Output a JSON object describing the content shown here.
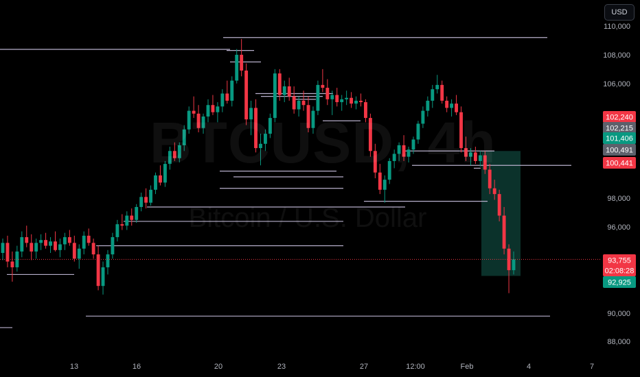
{
  "currency_button": "USD",
  "watermark": {
    "symbol": "BTCUSD, 4h",
    "name": "Bitcoin / U.S. Dollar"
  },
  "colors": {
    "background": "#000000",
    "up": "#089981",
    "down": "#f23645",
    "level_line": "#b8b0cc",
    "axis_text": "#b2b5be",
    "current_price_line": "#f23645",
    "zone_fill": "#0d3b33"
  },
  "chart_data": {
    "type": "candlestick",
    "symbol": "BTCUSD",
    "timeframe": "4h",
    "y_ticks": [
      "110,000",
      "108,000",
      "106,000",
      "98,000",
      "96,000",
      "90,000",
      "88,000"
    ],
    "x_ticks": [
      "13",
      "16",
      "20",
      "23",
      "27",
      "12:00",
      "Feb",
      "4",
      "7"
    ],
    "price_labels": [
      {
        "text": "102,240",
        "color": "#f23645"
      },
      {
        "text": "102,215",
        "color": "#5d606b"
      },
      {
        "text": "101,406",
        "color": "#089981"
      },
      {
        "text": "100,491",
        "color": "#5d606b"
      },
      {
        "text": "100,441",
        "color": "#f23645"
      },
      {
        "text": "93,755",
        "color": "#f23645"
      },
      {
        "text": "02:08:28",
        "color": "#f23645"
      },
      {
        "text": "92,925",
        "color": "#089981"
      }
    ],
    "current_price": 93755,
    "horizontal_levels": [
      109200,
      108300,
      107500,
      105300,
      105100,
      104900,
      103400,
      101300,
      100300,
      100100,
      99900,
      99500,
      98700,
      97800,
      97400,
      96400,
      94700,
      92700,
      89800,
      89000
    ],
    "zone": {
      "top": 101300,
      "bottom": 92600,
      "from": "Feb 1",
      "to": "Feb 3"
    },
    "candles": [
      [
        94200,
        95200,
        93700,
        94900
      ],
      [
        94900,
        95400,
        93200,
        93600
      ],
      [
        93600,
        94300,
        92200,
        93200
      ],
      [
        93200,
        94700,
        92900,
        94300
      ],
      [
        94300,
        95700,
        93900,
        95300
      ],
      [
        95300,
        96100,
        94600,
        94900
      ],
      [
        94900,
        95500,
        93700,
        94300
      ],
      [
        94300,
        95200,
        93800,
        94900
      ],
      [
        94900,
        95500,
        94400,
        95100
      ],
      [
        95100,
        95600,
        94500,
        94700
      ],
      [
        94700,
        95300,
        94200,
        95000
      ],
      [
        95000,
        95700,
        94300,
        94400
      ],
      [
        94400,
        95200,
        93900,
        94800
      ],
      [
        94800,
        95600,
        94400,
        95300
      ],
      [
        95300,
        95800,
        94700,
        94900
      ],
      [
        94900,
        95400,
        93600,
        93800
      ],
      [
        93800,
        94800,
        93100,
        94500
      ],
      [
        94500,
        95700,
        94100,
        95400
      ],
      [
        95400,
        95900,
        94700,
        94900
      ],
      [
        94900,
        95200,
        93800,
        94100
      ],
      [
        94100,
        94700,
        91600,
        91900
      ],
      [
        91900,
        93600,
        91300,
        93200
      ],
      [
        93200,
        94400,
        92700,
        94100
      ],
      [
        94100,
        95600,
        93800,
        95300
      ],
      [
        95300,
        96500,
        95000,
        96200
      ],
      [
        96200,
        96900,
        95800,
        96100
      ],
      [
        96100,
        97100,
        95800,
        96800
      ],
      [
        96800,
        97300,
        96100,
        96500
      ],
      [
        96500,
        97600,
        96300,
        97400
      ],
      [
        97400,
        98400,
        97100,
        98100
      ],
      [
        98100,
        98700,
        97300,
        97700
      ],
      [
        97700,
        98900,
        97500,
        98600
      ],
      [
        98600,
        99800,
        98300,
        99600
      ],
      [
        99600,
        100300,
        98900,
        99100
      ],
      [
        99100,
        100600,
        98800,
        100400
      ],
      [
        100400,
        101600,
        100000,
        101300
      ],
      [
        101300,
        101900,
        100600,
        100800
      ],
      [
        100800,
        101900,
        100500,
        101700
      ],
      [
        101700,
        103100,
        101300,
        102800
      ],
      [
        102800,
        104400,
        102500,
        104100
      ],
      [
        104100,
        105100,
        103600,
        103900
      ],
      [
        103900,
        104500,
        102600,
        102900
      ],
      [
        102900,
        103900,
        102500,
        103700
      ],
      [
        103700,
        104900,
        103300,
        104500
      ],
      [
        104500,
        105200,
        103800,
        104000
      ],
      [
        104000,
        104700,
        103300,
        104400
      ],
      [
        104400,
        105600,
        104000,
        105300
      ],
      [
        105300,
        106200,
        104600,
        104800
      ],
      [
        104800,
        106500,
        104400,
        106200
      ],
      [
        106200,
        108400,
        106000,
        108000
      ],
      [
        108000,
        109100,
        106500,
        106900
      ],
      [
        106900,
        107400,
        103100,
        103500
      ],
      [
        103500,
        104800,
        102400,
        104300
      ],
      [
        104300,
        104900,
        101200,
        101500
      ],
      [
        101500,
        102500,
        100300,
        101800
      ],
      [
        101800,
        102800,
        101300,
        102500
      ],
      [
        102500,
        103900,
        102200,
        103600
      ],
      [
        103600,
        107000,
        103300,
        106700
      ],
      [
        106700,
        107000,
        104800,
        105200
      ],
      [
        105200,
        106200,
        104700,
        105800
      ],
      [
        105800,
        106400,
        104800,
        105100
      ],
      [
        105100,
        105800,
        103900,
        104200
      ],
      [
        104200,
        105100,
        103700,
        104800
      ],
      [
        104800,
        105500,
        104100,
        104500
      ],
      [
        104500,
        105100,
        102600,
        102900
      ],
      [
        102900,
        104400,
        102500,
        104100
      ],
      [
        104100,
        106200,
        103800,
        105900
      ],
      [
        105900,
        107000,
        105400,
        105700
      ],
      [
        105700,
        106300,
        104500,
        104900
      ],
      [
        104900,
        105500,
        103800,
        105200
      ],
      [
        105200,
        105700,
        104400,
        104700
      ],
      [
        104700,
        105200,
        104100,
        104900
      ],
      [
        104900,
        105500,
        104500,
        105000
      ],
      [
        105000,
        105400,
        104300,
        104600
      ],
      [
        104600,
        105100,
        104200,
        104800
      ],
      [
        104800,
        105300,
        104400,
        104700
      ],
      [
        104700,
        104900,
        103300,
        103600
      ],
      [
        103600,
        103900,
        100900,
        101300
      ],
      [
        101300,
        101800,
        99400,
        99800
      ],
      [
        99800,
        100400,
        98300,
        98600
      ],
      [
        98600,
        99600,
        97700,
        99300
      ],
      [
        99300,
        100800,
        99000,
        100600
      ],
      [
        100600,
        101400,
        100100,
        101100
      ],
      [
        101100,
        101900,
        100600,
        101700
      ],
      [
        101700,
        102400,
        100600,
        100900
      ],
      [
        100900,
        101600,
        100500,
        101400
      ],
      [
        101400,
        102300,
        101100,
        102100
      ],
      [
        102100,
        103400,
        101800,
        103200
      ],
      [
        103200,
        104400,
        102900,
        104100
      ],
      [
        104100,
        105100,
        103700,
        104800
      ],
      [
        104800,
        105900,
        104300,
        105600
      ],
      [
        105600,
        106600,
        105300,
        105900
      ],
      [
        105900,
        106200,
        104600,
        104800
      ],
      [
        104800,
        105100,
        104000,
        104300
      ],
      [
        104300,
        104900,
        103700,
        104600
      ],
      [
        104600,
        105200,
        103800,
        104000
      ],
      [
        104000,
        104400,
        101200,
        101500
      ],
      [
        101500,
        102300,
        100600,
        100900
      ],
      [
        100900,
        101500,
        100300,
        101200
      ],
      [
        101200,
        101600,
        100400,
        100600
      ],
      [
        100600,
        101300,
        100200,
        101000
      ],
      [
        101000,
        101300,
        99700,
        100000
      ],
      [
        100000,
        100400,
        98300,
        98700
      ],
      [
        98700,
        99300,
        97900,
        98300
      ],
      [
        98300,
        98600,
        96400,
        96800
      ],
      [
        96800,
        97400,
        94100,
        94500
      ],
      [
        94500,
        94800,
        91400,
        93000
      ],
      [
        93000,
        94300,
        92700,
        93755
      ]
    ]
  }
}
